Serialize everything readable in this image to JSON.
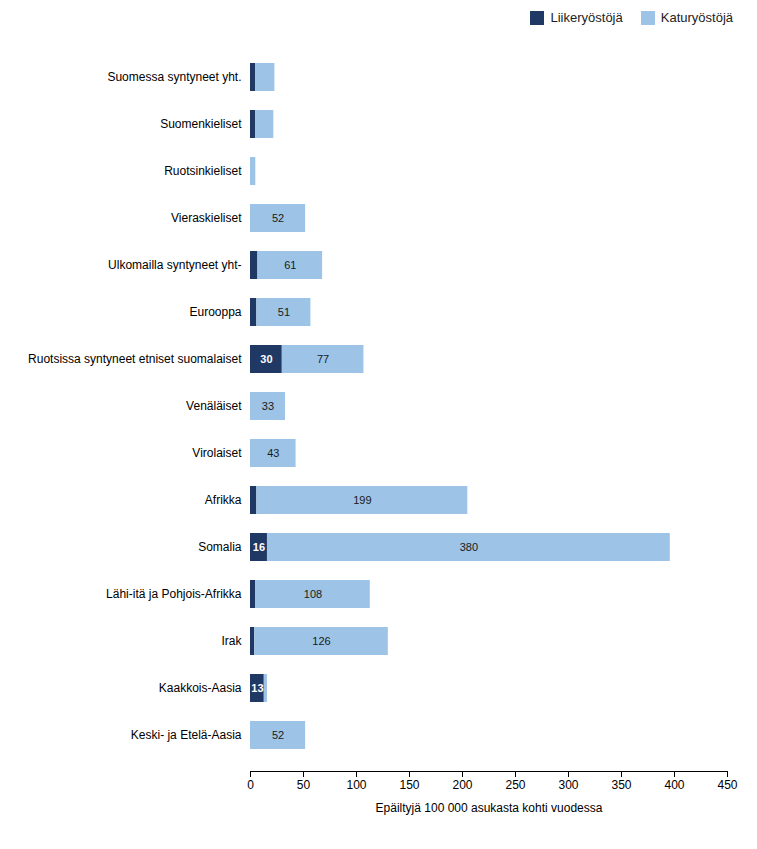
{
  "chart_data": {
    "type": "bar",
    "orientation": "horizontal",
    "stacked": true,
    "categories": [
      "Suomessa syntyneet yht.",
      "Suomenkieliset",
      "Ruotsinkieliset",
      "Vieraskieliset",
      "Ulkomailla syntyneet yht-",
      "Eurooppa",
      "Ruotsissa syntyneet etniset suomalaiset",
      "Venäläiset",
      "Virolaiset",
      "Afrikka",
      "Somalia",
      "Lähi-itä ja Pohjois-Afrikka",
      "Irak",
      "Kaakkois-Aasia",
      "Keski- ja Etelä-Aasia"
    ],
    "series": [
      {
        "name": "Liikeryöstöjä",
        "color": "#1F3864",
        "values": [
          5,
          5,
          0,
          0,
          7,
          6,
          30,
          0,
          0,
          6,
          16,
          5,
          4,
          13,
          0
        ],
        "value_labels": [
          null,
          null,
          null,
          null,
          null,
          null,
          "30",
          null,
          null,
          null,
          "16",
          null,
          null,
          "13",
          null
        ]
      },
      {
        "name": "Katuryöstöjä",
        "color": "#9DC3E6",
        "values": [
          18,
          17,
          5,
          52,
          61,
          51,
          77,
          33,
          43,
          199,
          380,
          108,
          126,
          3,
          52
        ],
        "value_labels": [
          null,
          null,
          null,
          "52",
          "61",
          "51",
          "77",
          "33",
          "43",
          "199",
          "380",
          "108",
          "126",
          null,
          "52"
        ]
      }
    ],
    "xlabel": "Epäiltyjä 100 000 asukasta kohti vuodessa",
    "xlim": [
      0,
      450
    ],
    "xticks": [
      0,
      50,
      100,
      150,
      200,
      250,
      300,
      350,
      400,
      450
    ],
    "grid": false,
    "legend": "upper right",
    "data_labels": true
  }
}
